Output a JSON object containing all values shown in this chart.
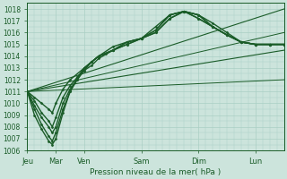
{
  "xlabel": "Pression niveau de la mer( hPa )",
  "ylim": [
    1006,
    1018.5
  ],
  "yticks": [
    1006,
    1007,
    1008,
    1009,
    1010,
    1011,
    1012,
    1013,
    1014,
    1015,
    1016,
    1017,
    1018
  ],
  "x_day_labels": [
    "Jeu",
    "Mar",
    "Ven",
    "Sam",
    "Dim",
    "Lun"
  ],
  "x_day_positions": [
    0,
    24,
    48,
    96,
    144,
    192
  ],
  "background_color": "#cce4dc",
  "grid_color": "#aacfc4",
  "line_color": "#1a5c28",
  "total_hours": 216,
  "series": [
    {
      "x": [
        0,
        216
      ],
      "y": [
        1011.0,
        1018.0
      ],
      "marker": null,
      "lw": 0.8
    },
    {
      "x": [
        0,
        216
      ],
      "y": [
        1011.0,
        1014.5
      ],
      "marker": null,
      "lw": 0.8
    },
    {
      "x": [
        0,
        216
      ],
      "y": [
        1011.0,
        1016.0
      ],
      "marker": null,
      "lw": 0.7
    },
    {
      "x": [
        0,
        216
      ],
      "y": [
        1011.0,
        1012.0
      ],
      "marker": null,
      "lw": 0.7
    },
    {
      "x": [
        0,
        6,
        12,
        18,
        21,
        24,
        30,
        36,
        48,
        54,
        60,
        72,
        84,
        96,
        108,
        120,
        132,
        144,
        156,
        168,
        180,
        192,
        204,
        216
      ],
      "y": [
        1011.0,
        1010.5,
        1010.0,
        1009.5,
        1009.2,
        1010.0,
        1011.2,
        1012.0,
        1013.0,
        1013.5,
        1014.0,
        1014.5,
        1015.0,
        1015.5,
        1016.0,
        1017.2,
        1017.8,
        1017.5,
        1016.8,
        1016.0,
        1015.2,
        1015.0,
        1015.0,
        1015.0
      ],
      "marker": "D",
      "lw": 1.0
    },
    {
      "x": [
        0,
        6,
        12,
        18,
        21,
        24,
        30,
        36,
        42,
        48,
        54,
        60,
        66,
        72,
        84,
        96,
        108,
        120,
        132,
        144,
        156,
        168,
        180,
        192,
        204,
        216
      ],
      "y": [
        1011.0,
        1010.2,
        1009.2,
        1008.5,
        1008.0,
        1008.8,
        1010.5,
        1011.5,
        1012.2,
        1012.8,
        1013.5,
        1014.0,
        1014.2,
        1014.5,
        1015.2,
        1015.5,
        1016.2,
        1017.5,
        1017.8,
        1017.5,
        1016.5,
        1015.8,
        1015.2,
        1015.0,
        1015.0,
        1015.0
      ],
      "marker": "D",
      "lw": 1.0
    },
    {
      "x": [
        0,
        6,
        12,
        18,
        21,
        24,
        30,
        36,
        42,
        48,
        54,
        60,
        72,
        84,
        96,
        108,
        120,
        132,
        144,
        156,
        168,
        180,
        192,
        204,
        216
      ],
      "y": [
        1011.0,
        1009.8,
        1008.8,
        1008.0,
        1007.5,
        1008.0,
        1010.0,
        1011.2,
        1012.0,
        1012.8,
        1013.2,
        1013.8,
        1014.5,
        1015.0,
        1015.5,
        1016.0,
        1017.2,
        1017.8,
        1017.5,
        1016.5,
        1015.8,
        1015.2,
        1015.0,
        1015.0,
        1015.0
      ],
      "marker": "D",
      "lw": 1.0
    },
    {
      "x": [
        0,
        6,
        12,
        18,
        21,
        24,
        30,
        36,
        42,
        48,
        54,
        60,
        72,
        84,
        96,
        108,
        120,
        132,
        144,
        156,
        168,
        180,
        192,
        204,
        216
      ],
      "y": [
        1011.0,
        1009.5,
        1008.2,
        1007.2,
        1006.8,
        1007.5,
        1009.5,
        1011.0,
        1012.0,
        1013.0,
        1013.5,
        1014.0,
        1014.5,
        1015.2,
        1015.5,
        1016.5,
        1017.5,
        1017.8,
        1017.2,
        1016.5,
        1015.8,
        1015.2,
        1015.0,
        1015.0,
        1015.0
      ],
      "marker": "D",
      "lw": 1.0
    },
    {
      "x": [
        0,
        6,
        12,
        18,
        21,
        24,
        30,
        36,
        42,
        48,
        60,
        72,
        84,
        96,
        108,
        120,
        132,
        144,
        156,
        168,
        180,
        192,
        204,
        216
      ],
      "y": [
        1011.0,
        1009.0,
        1007.8,
        1006.8,
        1006.5,
        1007.0,
        1009.2,
        1011.0,
        1012.2,
        1013.0,
        1014.0,
        1014.8,
        1015.2,
        1015.5,
        1016.2,
        1017.5,
        1017.8,
        1017.2,
        1016.5,
        1015.8,
        1015.2,
        1015.0,
        1015.0,
        1015.0
      ],
      "marker": "D",
      "lw": 1.0
    }
  ]
}
